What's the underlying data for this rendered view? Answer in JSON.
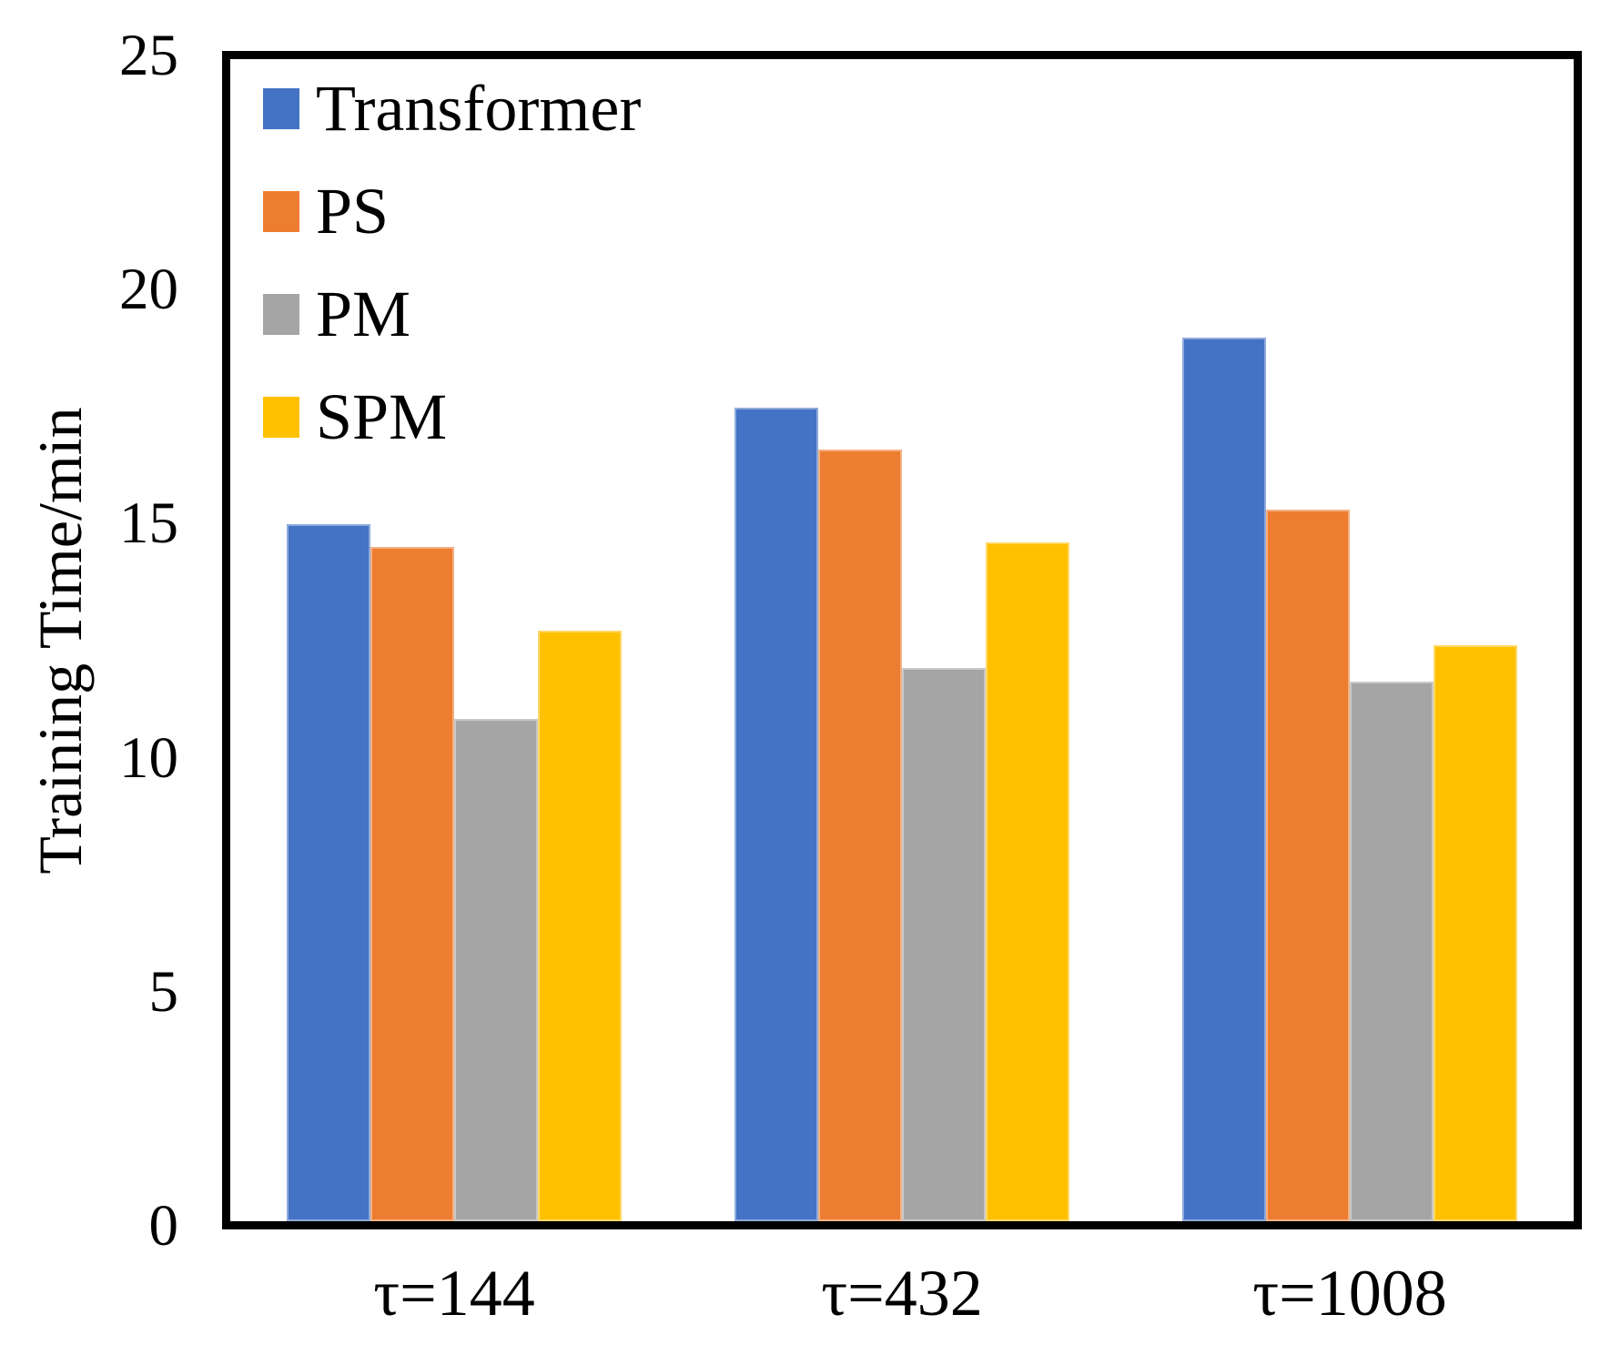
{
  "chart_data": {
    "type": "bar",
    "title": "",
    "xlabel": "",
    "ylabel": "Training Time/min",
    "categories": [
      "τ=144",
      "τ=432",
      "τ=1008"
    ],
    "series": [
      {
        "name": "Transformer",
        "color": "#4472C4",
        "border_color": "#8FAADC",
        "values": [
          15.0,
          17.5,
          19.0
        ]
      },
      {
        "name": "PS",
        "color": "#ED7D31",
        "border_color": "#F4B183",
        "values": [
          14.5,
          16.6,
          15.3
        ]
      },
      {
        "name": "PM",
        "color": "#A5A5A5",
        "border_color": "#C9C9C9",
        "values": [
          10.8,
          11.9,
          11.6
        ]
      },
      {
        "name": "SPM",
        "color": "#FFC000",
        "border_color": "#FFD966",
        "values": [
          12.7,
          14.6,
          12.4
        ]
      }
    ],
    "ylim": [
      0,
      25
    ],
    "yticks": [
      0,
      5,
      10,
      15,
      20,
      25
    ],
    "grid": false,
    "legend_position": "inside-top-left",
    "frame_color": "#000000",
    "background_color": "#FFFFFF"
  }
}
